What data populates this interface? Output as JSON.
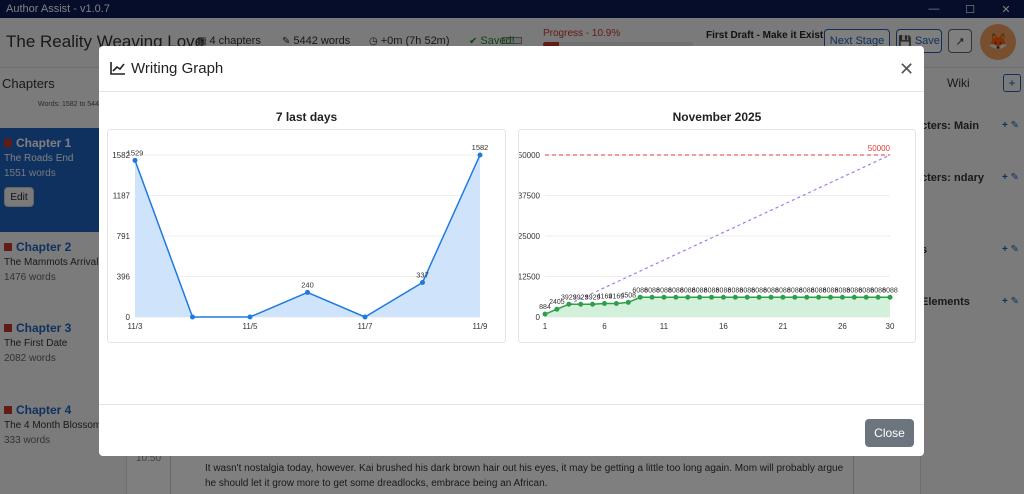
{
  "window": {
    "title": "Author Assist - v1.0.7"
  },
  "header": {
    "book_title": "The Reality Weaving Love",
    "chapters": "4 chapters",
    "words": "5442 words",
    "time": "+0m (7h 52m)",
    "saved": "Saved!",
    "progress_label": "Progress - 10.9%",
    "progress": 10.9,
    "stage": "First Draft - Make it Exist!",
    "next_stage": "Next Stage",
    "save": "Save"
  },
  "sidebar": {
    "title": "Chapters",
    "words_range": "Words: 1582 to 544",
    "chapters": [
      {
        "name": "Chapter 1",
        "subtitle": "The Roads End",
        "words": "1551 words",
        "edit": "Edit"
      },
      {
        "name": "Chapter 2",
        "subtitle": "The Mammots Arrival",
        "words": "1476 words"
      },
      {
        "name": "Chapter 3",
        "subtitle": "The First Date",
        "words": "2082 words"
      },
      {
        "name": "Chapter 4",
        "subtitle": "The 4 Month Blossom",
        "words": "333 words"
      }
    ],
    "timecode": "10:50"
  },
  "right_panel": {
    "tab": "Wiki",
    "items": [
      "cters: Main",
      "cters: ndary",
      "s",
      "Elements"
    ]
  },
  "editor": {
    "text": "It wasn't nostalgia today, however. Kai brushed his dark brown hair out his eyes, it may be getting a little too long again. Mom will probably argue he should let it grow more to get some dreadlocks, embrace being an African."
  },
  "modal": {
    "title": "Writing Graph",
    "close_label": "Close",
    "close_icon": "close-icon"
  },
  "chart_data": [
    {
      "type": "area",
      "title": "7 last days",
      "x": [
        "11/3",
        "11/4",
        "11/5",
        "11/6",
        "11/7",
        "11/8",
        "11/9"
      ],
      "x_tick_labels": [
        "11/3",
        "11/5",
        "11/7",
        "11/9"
      ],
      "values": [
        1529,
        0,
        0,
        240,
        0,
        337,
        1582
      ],
      "point_labels": [
        "1529",
        "",
        "",
        "240",
        "",
        "337",
        "1582"
      ],
      "y_ticks": [
        0,
        396,
        791,
        1187,
        1582
      ],
      "ylim": [
        0,
        1582
      ],
      "color": "#1e7ae0",
      "fill": "#cfe4fb"
    },
    {
      "type": "area",
      "title": "November 2025",
      "x_ticks": [
        1,
        6,
        11,
        16,
        21,
        26,
        30
      ],
      "y_ticks": [
        0,
        12500,
        25000,
        37500,
        50000
      ],
      "y_tick_labels": [
        "0",
        "12500",
        "25000",
        "37500",
        "50000"
      ],
      "ylim": [
        0,
        50000
      ],
      "xlim": [
        1,
        30
      ],
      "goal": 50000,
      "goal_label": "50000",
      "series": [
        {
          "values": [
            884,
            2405,
            3929,
            3929,
            3929,
            4169,
            4169,
            4508,
            6088,
            6088,
            6088,
            6088,
            6088,
            6088,
            6088,
            6088,
            6088,
            6088,
            6088,
            6088,
            6088,
            6088,
            6088,
            6088,
            6088,
            6088,
            6088,
            6088,
            6088,
            6088
          ],
          "point_labels": [
            "884",
            "2405",
            "3929",
            "3929",
            "3929",
            "4169",
            "4169",
            "4508",
            "6088",
            "6088",
            "6088",
            "6088",
            "6088",
            "6088",
            "6088",
            "6088",
            "6088",
            "6088",
            "6088",
            "6088",
            "6088",
            "6088",
            "6088",
            "6088",
            "6088",
            "6088",
            "6088",
            "6088",
            "6088",
            "6088"
          ],
          "color": "#2e9e48",
          "fill": "#d3f0da"
        }
      ],
      "projection": {
        "from": [
          3,
          3929
        ],
        "to": [
          30,
          50000
        ],
        "color": "#a779e8"
      },
      "goal_color": "#e03a3a"
    }
  ]
}
